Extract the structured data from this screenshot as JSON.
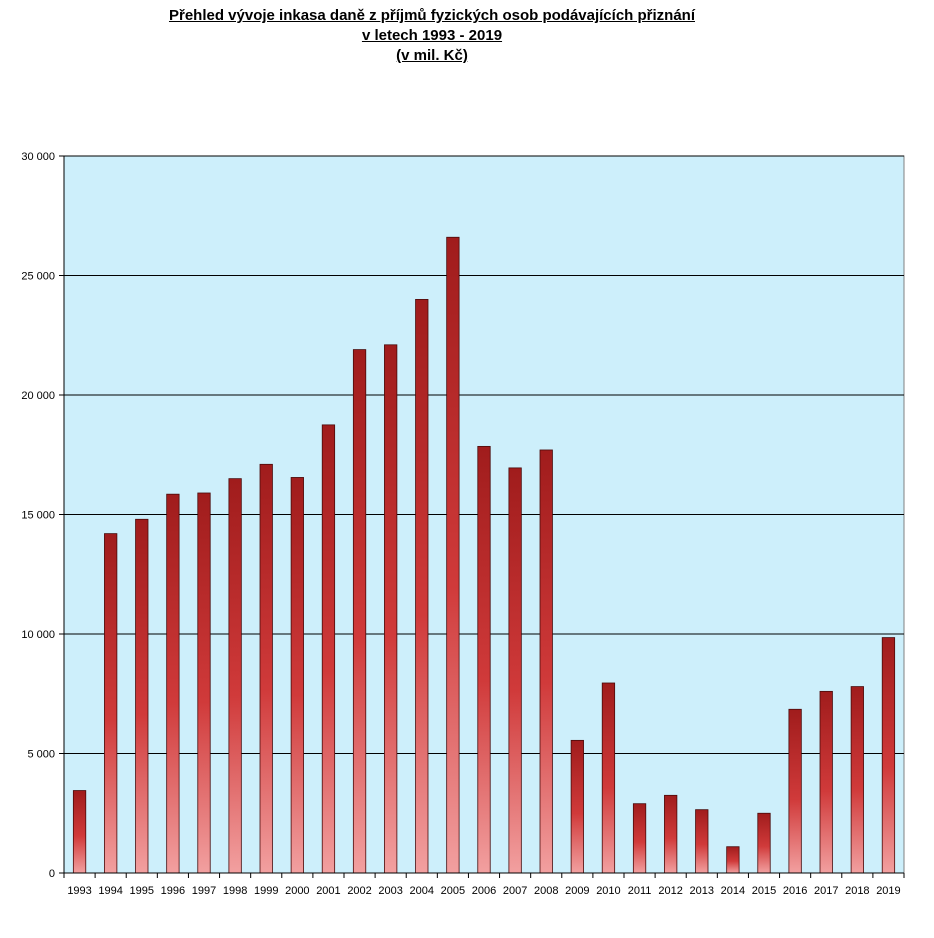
{
  "chart_data": {
    "type": "bar",
    "title_lines": [
      "Přehled vývoje inkasa daně z příjmů fyzických osob podávajících přiznání",
      "v letech 1993 - 2019",
      "(v mil. Kč)"
    ],
    "xlabel": "",
    "ylabel": "",
    "categories": [
      "1993",
      "1994",
      "1995",
      "1996",
      "1997",
      "1998",
      "1999",
      "2000",
      "2001",
      "2002",
      "2003",
      "2004",
      "2005",
      "2006",
      "2007",
      "2008",
      "2009",
      "2010",
      "2011",
      "2012",
      "2013",
      "2014",
      "2015",
      "2016",
      "2017",
      "2018",
      "2019"
    ],
    "values": [
      3450,
      14200,
      14800,
      15850,
      15900,
      16500,
      17100,
      16550,
      18750,
      21900,
      22100,
      24000,
      26600,
      17850,
      16950,
      17700,
      5550,
      7950,
      2900,
      3250,
      2650,
      1100,
      2500,
      6850,
      7600,
      7800,
      9850
    ],
    "ylim": [
      0,
      30000
    ],
    "yticks": [
      0,
      5000,
      10000,
      15000,
      20000,
      25000,
      30000
    ],
    "ytick_labels": [
      "0",
      "5 000",
      "10 000",
      "15 000",
      "20 000",
      "25 000",
      "30 000"
    ],
    "grid": true,
    "legend": "none",
    "colors": {
      "plot_bg": "#cdeffb",
      "bar_dark": "#a01c1c",
      "bar_mid": "#d03a3a",
      "bar_light": "#f2a0a0",
      "grid": "#000000"
    }
  }
}
